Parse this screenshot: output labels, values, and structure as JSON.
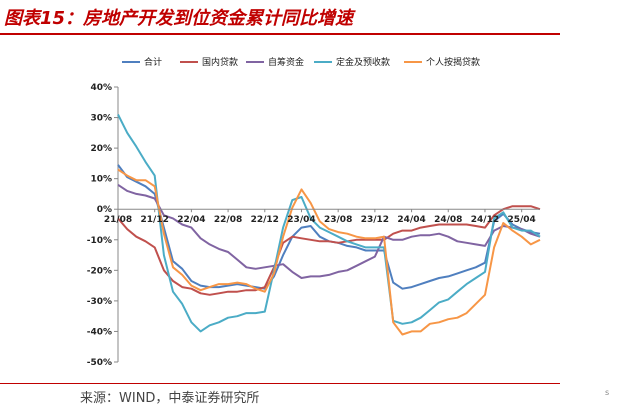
{
  "header": {
    "title": "图表15：房地产开发到位资金累计同比增速"
  },
  "footer": {
    "source": "来源：WIND，中泰证券研究所",
    "edge_mark": "s"
  },
  "chart_data": {
    "type": "line",
    "title": "图表15：房地产开发到位资金累计同比增速",
    "xlabel": "",
    "ylabel": "",
    "ylim": [
      -50,
      40
    ],
    "yticks": [
      40,
      30,
      20,
      10,
      0,
      -10,
      -20,
      -30,
      -40,
      -50
    ],
    "ytick_labels": [
      "40%",
      "30%",
      "20%",
      "10%",
      "0%",
      "-10%",
      "-20%",
      "-30%",
      "-40%",
      "-50%"
    ],
    "xtick_labels": [
      "21/08",
      "21/12",
      "22/04",
      "22/08",
      "22/12",
      "23/04",
      "23/08",
      "23/12",
      "24/04",
      "24/08",
      "24/12",
      "25/04"
    ],
    "xlim": [
      "2021-08",
      "2025-06"
    ],
    "grid": false,
    "legend_position": "top",
    "series": [
      {
        "name": "合计",
        "color": "#4f7fbf",
        "x": [
          "2021-08",
          "2021-09",
          "2021-10",
          "2021-11",
          "2021-12",
          "2022-01",
          "2022-02",
          "2022-03",
          "2022-04",
          "2022-05",
          "2022-06",
          "2022-07",
          "2022-08",
          "2022-09",
          "2022-10",
          "2022-11",
          "2022-12",
          "2023-01",
          "2023-02",
          "2023-03",
          "2023-04",
          "2023-05",
          "2023-06",
          "2023-07",
          "2023-08",
          "2023-09",
          "2023-10",
          "2023-11",
          "2023-12",
          "2024-01",
          "2024-02",
          "2024-03",
          "2024-04",
          "2024-05",
          "2024-06",
          "2024-07",
          "2024-08",
          "2024-09",
          "2024-10",
          "2024-11",
          "2024-12",
          "2025-01",
          "2025-02",
          "2025-03",
          "2025-04",
          "2025-05",
          "2025-06"
        ],
        "values": [
          14.5,
          10.5,
          9.0,
          7.5,
          5.0,
          -6.0,
          -17.0,
          -19.5,
          -23.5,
          -25.0,
          -25.5,
          -25.5,
          -25.0,
          -24.5,
          -25.0,
          -25.5,
          -26.0,
          -22.0,
          -15.0,
          -9.0,
          -6.0,
          -5.5,
          -9.0,
          -10.5,
          -11.0,
          -12.0,
          -12.5,
          -13.5,
          -13.5,
          -13.5,
          -24.0,
          -26.0,
          -25.5,
          -24.5,
          -23.5,
          -22.5,
          -22.0,
          -21.0,
          -20.0,
          -19.0,
          -17.5,
          -4.0,
          -1.5,
          -5.0,
          -6.5,
          -7.5,
          -8.0
        ]
      },
      {
        "name": "国内贷款",
        "color": "#c0504d",
        "x": [
          "2021-08",
          "2021-09",
          "2021-10",
          "2021-11",
          "2021-12",
          "2022-01",
          "2022-02",
          "2022-03",
          "2022-04",
          "2022-05",
          "2022-06",
          "2022-07",
          "2022-08",
          "2022-09",
          "2022-10",
          "2022-11",
          "2022-12",
          "2023-01",
          "2023-02",
          "2023-03",
          "2023-04",
          "2023-05",
          "2023-06",
          "2023-07",
          "2023-08",
          "2023-09",
          "2023-10",
          "2023-11",
          "2023-12",
          "2024-01",
          "2024-02",
          "2024-03",
          "2024-04",
          "2024-05",
          "2024-06",
          "2024-07",
          "2024-08",
          "2024-09",
          "2024-10",
          "2024-11",
          "2024-12",
          "2025-01",
          "2025-02",
          "2025-03",
          "2025-04",
          "2025-05",
          "2025-06"
        ],
        "values": [
          -3.0,
          -6.5,
          -9.0,
          -10.5,
          -12.5,
          -20.0,
          -23.5,
          -25.5,
          -26.0,
          -27.5,
          -28.0,
          -27.5,
          -27.0,
          -27.0,
          -26.5,
          -26.5,
          -25.5,
          -19.0,
          -11.0,
          -9.0,
          -9.5,
          -10.0,
          -10.5,
          -10.5,
          -11.0,
          -10.5,
          -10.0,
          -10.0,
          -10.0,
          -10.0,
          -8.0,
          -7.0,
          -7.0,
          -6.0,
          -5.5,
          -5.0,
          -5.0,
          -5.0,
          -5.0,
          -5.5,
          -6.0,
          -2.0,
          0.0,
          1.0,
          1.0,
          1.0,
          0.0
        ]
      },
      {
        "name": "自筹资金",
        "color": "#8064a2",
        "x": [
          "2021-08",
          "2021-09",
          "2021-10",
          "2021-11",
          "2021-12",
          "2022-01",
          "2022-02",
          "2022-03",
          "2022-04",
          "2022-05",
          "2022-06",
          "2022-07",
          "2022-08",
          "2022-09",
          "2022-10",
          "2022-11",
          "2022-12",
          "2023-01",
          "2023-02",
          "2023-03",
          "2023-04",
          "2023-05",
          "2023-06",
          "2023-07",
          "2023-08",
          "2023-09",
          "2023-10",
          "2023-11",
          "2023-12",
          "2024-01",
          "2024-02",
          "2024-03",
          "2024-04",
          "2024-05",
          "2024-06",
          "2024-07",
          "2024-08",
          "2024-09",
          "2024-10",
          "2024-11",
          "2024-12",
          "2025-01",
          "2025-02",
          "2025-03",
          "2025-04",
          "2025-05",
          "2025-06"
        ],
        "values": [
          8.0,
          6.0,
          5.0,
          4.5,
          3.5,
          -2.0,
          -3.0,
          -5.0,
          -6.0,
          -9.5,
          -11.5,
          -13.0,
          -14.0,
          -16.5,
          -19.0,
          -19.5,
          -19.0,
          -18.5,
          -18.0,
          -20.5,
          -22.5,
          -22.0,
          -22.0,
          -21.5,
          -20.5,
          -20.0,
          -18.5,
          -17.0,
          -15.5,
          -9.0,
          -10.0,
          -10.0,
          -9.0,
          -8.5,
          -8.5,
          -8.0,
          -9.0,
          -10.5,
          -11.0,
          -11.5,
          -12.0,
          -7.0,
          -5.5,
          -6.0,
          -6.5,
          -8.0,
          -9.0
        ]
      },
      {
        "name": "定金及预收款",
        "color": "#4bacc6",
        "x": [
          "2021-08",
          "2021-09",
          "2021-10",
          "2021-11",
          "2021-12",
          "2022-01",
          "2022-02",
          "2022-03",
          "2022-04",
          "2022-05",
          "2022-06",
          "2022-07",
          "2022-08",
          "2022-09",
          "2022-10",
          "2022-11",
          "2022-12",
          "2023-01",
          "2023-02",
          "2023-03",
          "2023-04",
          "2023-05",
          "2023-06",
          "2023-07",
          "2023-08",
          "2023-09",
          "2023-10",
          "2023-11",
          "2023-12",
          "2024-01",
          "2024-02",
          "2024-03",
          "2024-04",
          "2024-05",
          "2024-06",
          "2024-07",
          "2024-08",
          "2024-09",
          "2024-10",
          "2024-11",
          "2024-12",
          "2025-01",
          "2025-02",
          "2025-03",
          "2025-04",
          "2025-05",
          "2025-06"
        ],
        "values": [
          31.0,
          25.0,
          20.5,
          15.5,
          11.0,
          -15.0,
          -27.0,
          -31.0,
          -37.0,
          -40.0,
          -38.0,
          -37.0,
          -35.5,
          -35.0,
          -34.0,
          -34.0,
          -33.5,
          -20.0,
          -6.0,
          3.0,
          4.0,
          -3.0,
          -6.0,
          -7.5,
          -9.0,
          -10.5,
          -11.5,
          -12.5,
          -12.5,
          -12.5,
          -36.5,
          -37.5,
          -37.0,
          -35.5,
          -33.0,
          -30.5,
          -29.5,
          -27.0,
          -24.5,
          -22.5,
          -20.5,
          -3.0,
          -1.0,
          -6.0,
          -7.0,
          -7.0,
          -9.0
        ]
      },
      {
        "name": "个人按揭贷款",
        "color": "#f79646",
        "x": [
          "2021-08",
          "2021-09",
          "2021-10",
          "2021-11",
          "2021-12",
          "2022-01",
          "2022-02",
          "2022-03",
          "2022-04",
          "2022-05",
          "2022-06",
          "2022-07",
          "2022-08",
          "2022-09",
          "2022-10",
          "2022-11",
          "2022-12",
          "2023-01",
          "2023-02",
          "2023-03",
          "2023-04",
          "2023-05",
          "2023-06",
          "2023-07",
          "2023-08",
          "2023-09",
          "2023-10",
          "2023-11",
          "2023-12",
          "2024-01",
          "2024-02",
          "2024-03",
          "2024-04",
          "2024-05",
          "2024-06",
          "2024-07",
          "2024-08",
          "2024-09",
          "2024-10",
          "2024-11",
          "2024-12",
          "2025-01",
          "2025-02",
          "2025-03",
          "2025-04",
          "2025-05",
          "2025-06"
        ],
        "values": [
          13.0,
          11.0,
          9.5,
          9.5,
          7.5,
          -8.0,
          -19.0,
          -21.5,
          -25.0,
          -26.5,
          -25.5,
          -24.5,
          -24.5,
          -24.0,
          -24.5,
          -26.0,
          -27.0,
          -21.0,
          -9.0,
          0.5,
          6.5,
          2.0,
          -4.0,
          -6.5,
          -7.5,
          -8.0,
          -9.0,
          -9.5,
          -9.5,
          -9.0,
          -37.0,
          -41.0,
          -40.0,
          -40.0,
          -37.5,
          -37.0,
          -36.0,
          -35.5,
          -34.0,
          -31.0,
          -28.0,
          -12.5,
          -4.5,
          -7.0,
          -9.0,
          -11.5,
          -10.0
        ]
      }
    ]
  }
}
